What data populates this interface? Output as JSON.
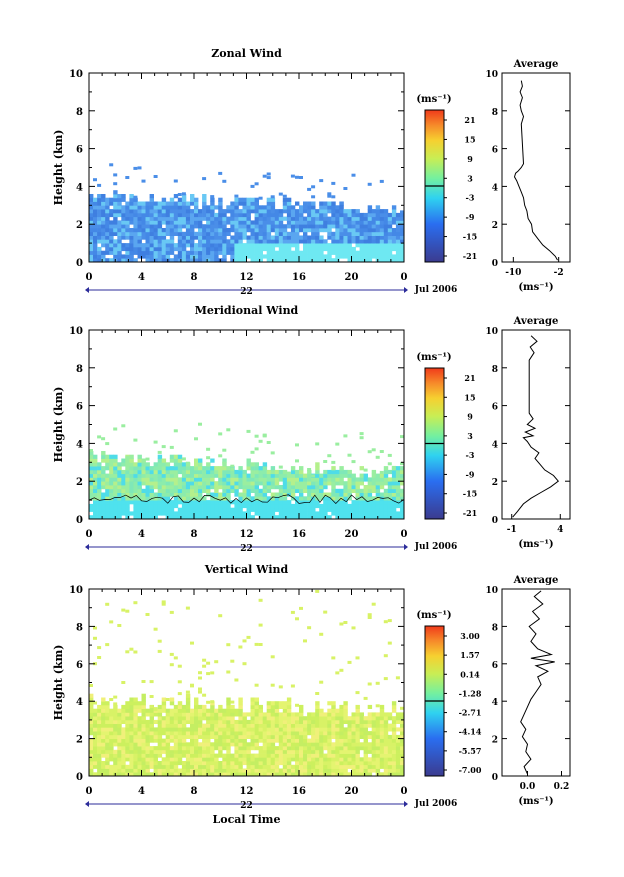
{
  "figure": {
    "time_title": "Local Time",
    "date_label": "Jul 2006",
    "colors": {
      "colorbar_low": "#3b3b8f",
      "colorbar_mid_low": "#2fd2f0",
      "colorbar_mid": "#c8ee55",
      "colorbar_high": "#f03a1a",
      "zonal_fill": "#4a8ee8",
      "meridional_fill": "#9aeea0",
      "vertical_fill": "#d8f266"
    }
  },
  "chart_data": [
    {
      "id": "zonal",
      "type": "heatmap",
      "title": "Zonal Wind",
      "ylabel": "Height (km)",
      "xticks": [
        "0",
        "4",
        "8",
        "12",
        "16",
        "20",
        "0"
      ],
      "xlim": [
        0,
        24
      ],
      "yticks": [
        "0",
        "2",
        "4",
        "6",
        "8",
        "10"
      ],
      "ylim": [
        0,
        10
      ],
      "day_label": "22",
      "colorbar": {
        "unit": "(ms⁻¹)",
        "ticks": [
          "21",
          "15",
          "9",
          "3",
          "-3",
          "-9",
          "-15",
          "-21"
        ]
      },
      "average": {
        "title": "Average",
        "xlabel": "(ms⁻¹)",
        "xticks": [
          "-10",
          "-2"
        ],
        "xlim": [
          -12,
          0
        ],
        "ylim": [
          0,
          10
        ],
        "yticks": [
          "0",
          "2",
          "4",
          "6",
          "8",
          "10"
        ],
        "profile": [
          [
            -2.2,
            0.1
          ],
          [
            -2.6,
            0.3
          ],
          [
            -3.6,
            0.6
          ],
          [
            -4.8,
            0.9
          ],
          [
            -5.6,
            1.2
          ],
          [
            -6.6,
            1.6
          ],
          [
            -6.8,
            2.0
          ],
          [
            -7.4,
            2.3
          ],
          [
            -7.6,
            2.7
          ],
          [
            -8.0,
            3.0
          ],
          [
            -8.2,
            3.4
          ],
          [
            -8.6,
            3.7
          ],
          [
            -9.0,
            4.0
          ],
          [
            -9.4,
            4.3
          ],
          [
            -9.8,
            4.5
          ],
          [
            -9.6,
            4.7
          ],
          [
            -9.2,
            4.8
          ],
          [
            -8.6,
            5.0
          ],
          [
            -8.2,
            5.2
          ],
          [
            -8.6,
            7.3
          ],
          [
            -8.2,
            7.7
          ],
          [
            -8.6,
            8.0
          ],
          [
            -8.8,
            8.3
          ],
          [
            -8.4,
            8.7
          ],
          [
            -8.8,
            9.0
          ],
          [
            -8.4,
            9.3
          ],
          [
            -8.6,
            9.6
          ]
        ]
      }
    },
    {
      "id": "meridional",
      "type": "heatmap",
      "title": "Meridional Wind",
      "ylabel": "Height (km)",
      "xticks": [
        "0",
        "4",
        "8",
        "12",
        "16",
        "20",
        "0"
      ],
      "xlim": [
        0,
        24
      ],
      "yticks": [
        "0",
        "2",
        "4",
        "6",
        "8",
        "10"
      ],
      "ylim": [
        0,
        10
      ],
      "day_label": "22",
      "colorbar": {
        "unit": "(ms⁻¹)",
        "ticks": [
          "21",
          "15",
          "9",
          "3",
          "-3",
          "-9",
          "-15",
          "-21"
        ]
      },
      "average": {
        "title": "Average",
        "xlabel": "(ms⁻¹)",
        "xticks": [
          "-1",
          "4"
        ],
        "xlim": [
          -2,
          5
        ],
        "ylim": [
          0,
          10
        ],
        "yticks": [
          "0",
          "2",
          "4",
          "6",
          "8",
          "10"
        ],
        "profile": [
          [
            -0.9,
            0.1
          ],
          [
            -0.4,
            0.4
          ],
          [
            0.2,
            0.8
          ],
          [
            1.0,
            1.1
          ],
          [
            2.0,
            1.4
          ],
          [
            3.0,
            1.7
          ],
          [
            3.8,
            2.0
          ],
          [
            3.3,
            2.3
          ],
          [
            2.4,
            2.6
          ],
          [
            1.9,
            2.9
          ],
          [
            1.4,
            3.2
          ],
          [
            1.8,
            3.5
          ],
          [
            1.0,
            3.8
          ],
          [
            0.6,
            4.1
          ],
          [
            0.2,
            4.3
          ],
          [
            1.2,
            4.4
          ],
          [
            0.4,
            4.6
          ],
          [
            1.4,
            4.8
          ],
          [
            0.6,
            5.0
          ],
          [
            1.2,
            5.3
          ],
          [
            0.8,
            5.6
          ],
          [
            0.8,
            8.4
          ],
          [
            1.3,
            8.8
          ],
          [
            0.9,
            9.1
          ],
          [
            1.6,
            9.4
          ],
          [
            1.0,
            9.7
          ]
        ]
      }
    },
    {
      "id": "vertical",
      "type": "heatmap",
      "title": "Vertical Wind",
      "ylabel": "Height (km)",
      "xticks": [
        "0",
        "4",
        "8",
        "12",
        "16",
        "20",
        "0"
      ],
      "xlim": [
        0,
        24
      ],
      "yticks": [
        "0",
        "2",
        "4",
        "6",
        "8",
        "10"
      ],
      "ylim": [
        0,
        10
      ],
      "day_label": "22",
      "colorbar": {
        "unit": "(ms⁻¹)",
        "ticks": [
          "3.00",
          "1.57",
          "0.14",
          "-1.28",
          "-2.71",
          "-4.14",
          "-5.57",
          "-7.00"
        ]
      },
      "average": {
        "title": "Average",
        "xlabel": "(ms⁻¹)",
        "xticks": [
          "0.0",
          "0.2"
        ],
        "xlim": [
          -0.15,
          0.25
        ],
        "ylim": [
          0,
          10
        ],
        "yticks": [
          "0",
          "2",
          "4",
          "6",
          "8",
          "10"
        ],
        "profile": [
          [
            0.0,
            0.1
          ],
          [
            -0.02,
            0.5
          ],
          [
            0.02,
            0.9
          ],
          [
            -0.01,
            1.3
          ],
          [
            0.0,
            1.7
          ],
          [
            -0.03,
            2.1
          ],
          [
            -0.01,
            2.5
          ],
          [
            -0.04,
            2.9
          ],
          [
            -0.02,
            3.3
          ],
          [
            0.0,
            3.7
          ],
          [
            0.02,
            4.1
          ],
          [
            0.05,
            4.5
          ],
          [
            0.08,
            4.9
          ],
          [
            0.06,
            5.3
          ],
          [
            0.12,
            5.6
          ],
          [
            0.05,
            5.9
          ],
          [
            0.16,
            6.1
          ],
          [
            0.02,
            6.3
          ],
          [
            0.14,
            6.5
          ],
          [
            0.06,
            6.8
          ],
          [
            0.02,
            7.2
          ],
          [
            0.05,
            7.6
          ],
          [
            0.01,
            8.0
          ],
          [
            0.07,
            8.4
          ],
          [
            0.03,
            8.8
          ],
          [
            0.09,
            9.2
          ],
          [
            0.04,
            9.6
          ],
          [
            0.08,
            9.9
          ]
        ]
      }
    }
  ]
}
